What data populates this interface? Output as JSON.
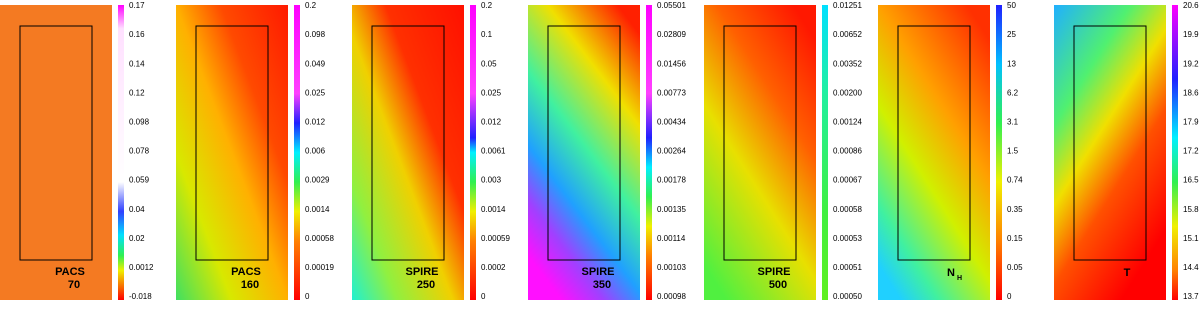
{
  "panels": [
    {
      "name": "PACS",
      "wavelength": "70",
      "ticks": [
        "0.17",
        "0.16",
        "0.14",
        "0.12",
        "0.098",
        "0.078",
        "0.059",
        "0.04",
        "0.02",
        "0.0012",
        "-0.018"
      ]
    },
    {
      "name": "PACS",
      "wavelength": "160",
      "ticks": [
        "0.2",
        "0.098",
        "0.049",
        "0.025",
        "0.012",
        "0.006",
        "0.0029",
        "0.0014",
        "0.00058",
        "0.00019",
        "0"
      ]
    },
    {
      "name": "SPIRE",
      "wavelength": "250",
      "ticks": [
        "0.2",
        "0.1",
        "0.05",
        "0.025",
        "0.012",
        "0.0061",
        "0.003",
        "0.0014",
        "0.00059",
        "0.0002",
        "0"
      ]
    },
    {
      "name": "SPIRE",
      "wavelength": "350",
      "ticks": [
        "0.05501",
        "0.02809",
        "0.01456",
        "0.00773",
        "0.00434",
        "0.00264",
        "0.00178",
        "0.00135",
        "0.00114",
        "0.00103",
        "0.00098"
      ]
    },
    {
      "name": "SPIRE",
      "wavelength": "500",
      "ticks": [
        "0.01251",
        "0.00652",
        "0.00352",
        "0.00200",
        "0.00124",
        "0.00086",
        "0.00067",
        "0.00058",
        "0.00053",
        "0.00051",
        "0.00050"
      ]
    },
    {
      "name": "N",
      "subscript": "H",
      "ticks": [
        "50",
        "25",
        "13",
        "6.2",
        "3.1",
        "1.5",
        "0.74",
        "0.35",
        "0.15",
        "0.05",
        "0"
      ]
    },
    {
      "name": "T",
      "ticks": [
        "20.6",
        "19.9",
        "19.2",
        "18.6",
        "17.9",
        "17.2",
        "16.5",
        "15.8",
        "15.1",
        "14.4",
        "13.7"
      ]
    }
  ]
}
